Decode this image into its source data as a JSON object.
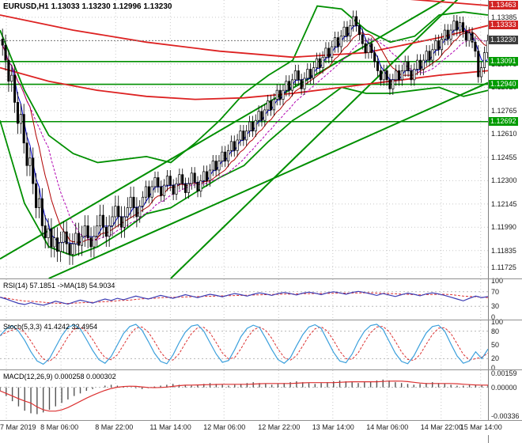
{
  "palette": {
    "grid": "#c8c8c8",
    "candle": "#000000",
    "green_line": "#008f00",
    "green_badge": "#009b00",
    "red_line": "#dd2222",
    "red_badge": "#d22424",
    "current_badge": "#3c3c3c",
    "blue_ma": "#0000cc",
    "crimson_ma": "#b00000",
    "magenta_ma": "#b000b0",
    "rsi_line": "#3c3cb4",
    "stoch_k": "#3ca0dc",
    "signal_red": "#dc3232",
    "hist": "#555555"
  },
  "chart_data": {
    "type": "candlestick",
    "main": {
      "symbol": "EURUSD",
      "timeframe": "H1",
      "ohlc_header": "EURUSD,H1  1.13033 1.13230 1.12996 1.13230",
      "open": 1.13033,
      "high": 1.1323,
      "low": 1.12996,
      "close": 1.1323,
      "price_max": 1.135,
      "price_min": 1.1165,
      "price_axis": {
        "ticks": [
          "1.13385",
          "1.13230",
          "1.13075",
          "1.12920",
          "1.12765",
          "1.12610",
          "1.12455",
          "1.12300",
          "1.12145",
          "1.11990",
          "1.11835",
          "1.11725"
        ],
        "badges": [
          {
            "text": "1.13463",
            "price": 1.13463,
            "bg": "#d22424"
          },
          {
            "text": "1.13333",
            "price": 1.13333,
            "bg": "#d22424"
          },
          {
            "text": "1.13230",
            "price": 1.1323,
            "bg": "#3c3c3c"
          },
          {
            "text": "1.13091",
            "price": 1.13091,
            "bg": "#009b00"
          },
          {
            "text": "1.12940",
            "price": 1.1294,
            "bg": "#009b00"
          },
          {
            "text": "1.12692",
            "price": 1.12692,
            "bg": "#009b00"
          }
        ]
      },
      "closes": [
        1.132,
        1.131,
        1.1296,
        1.13,
        1.1282,
        1.1268,
        1.1274,
        1.1255,
        1.124,
        1.1245,
        1.1228,
        1.1212,
        1.1218,
        1.12,
        1.1192,
        1.1198,
        1.1186,
        1.1192,
        1.1183,
        1.1189,
        1.1196,
        1.1188,
        1.1181,
        1.1188,
        1.1195,
        1.1187,
        1.1193,
        1.12,
        1.1192,
        1.1186,
        1.1193,
        1.12,
        1.1207,
        1.1199,
        1.1193,
        1.12,
        1.1206,
        1.1213,
        1.1206,
        1.1199,
        1.1206,
        1.1212,
        1.1219,
        1.1212,
        1.1206,
        1.1213,
        1.1219,
        1.1226,
        1.1219,
        1.1226,
        1.1232,
        1.1226,
        1.122,
        1.1227,
        1.1233,
        1.1227,
        1.1221,
        1.1228,
        1.1234,
        1.1228,
        1.1222,
        1.1228,
        1.1235,
        1.1229,
        1.1223,
        1.123,
        1.1236,
        1.123,
        1.1237,
        1.1243,
        1.1237,
        1.1243,
        1.1249,
        1.1243,
        1.125,
        1.1256,
        1.125,
        1.1257,
        1.1263,
        1.1257,
        1.1263,
        1.1269,
        1.1263,
        1.127,
        1.1276,
        1.127,
        1.1277,
        1.1283,
        1.1277,
        1.1284,
        1.129,
        1.1284,
        1.129,
        1.1296,
        1.129,
        1.1297,
        1.1303,
        1.1297,
        1.1291,
        1.1298,
        1.1304,
        1.1298,
        1.1305,
        1.1311,
        1.1305,
        1.1312,
        1.1318,
        1.1312,
        1.1319,
        1.1325,
        1.1319,
        1.1326,
        1.1332,
        1.1326,
        1.1333,
        1.1339,
        1.1333,
        1.1327,
        1.1321,
        1.1315,
        1.1321,
        1.1315,
        1.1309,
        1.1303,
        1.1297,
        1.1303,
        1.1297,
        1.1291,
        1.1297,
        1.1303,
        1.1297,
        1.1303,
        1.1309,
        1.1303,
        1.1297,
        1.1304,
        1.131,
        1.1304,
        1.131,
        1.1316,
        1.131,
        1.1317,
        1.1323,
        1.1317,
        1.1324,
        1.133,
        1.1324,
        1.133,
        1.1336,
        1.133,
        1.1335,
        1.1329,
        1.1323,
        1.1328,
        1.1322,
        1.1316,
        1.1299,
        1.1305,
        1.1315,
        1.1323
      ],
      "current_price": 1.1323,
      "h_lines": [
        1.13091,
        1.1294,
        1.12692
      ],
      "diagonals": [
        [
          [
            0.0,
            1.1178
          ],
          [
            0.92,
            1.1352
          ]
        ],
        [
          [
            0.1,
            1.1165
          ],
          [
            1.0,
            1.1295
          ]
        ],
        [
          [
            0.35,
            1.1165
          ],
          [
            1.0,
            1.137
          ]
        ]
      ],
      "upper_band": [
        [
          0,
          1.133
        ],
        [
          0.05,
          1.129
        ],
        [
          0.1,
          1.126
        ],
        [
          0.15,
          1.1248
        ],
        [
          0.2,
          1.1242
        ],
        [
          0.25,
          1.1244
        ],
        [
          0.3,
          1.1246
        ],
        [
          0.35,
          1.1242
        ],
        [
          0.4,
          1.1255
        ],
        [
          0.45,
          1.127
        ],
        [
          0.5,
          1.1288
        ],
        [
          0.55,
          1.13
        ],
        [
          0.6,
          1.131
        ],
        [
          0.65,
          1.1346
        ],
        [
          0.7,
          1.1344
        ],
        [
          0.75,
          1.133
        ],
        [
          0.8,
          1.1322
        ],
        [
          0.85,
          1.1326
        ],
        [
          0.9,
          1.134
        ],
        [
          0.95,
          1.1342
        ],
        [
          1,
          1.134
        ]
      ],
      "lower_band": [
        [
          0,
          1.127
        ],
        [
          0.05,
          1.1215
        ],
        [
          0.1,
          1.1186
        ],
        [
          0.15,
          1.118
        ],
        [
          0.2,
          1.1186
        ],
        [
          0.25,
          1.1196
        ],
        [
          0.3,
          1.1208
        ],
        [
          0.35,
          1.1212
        ],
        [
          0.4,
          1.1222
        ],
        [
          0.45,
          1.1232
        ],
        [
          0.5,
          1.124
        ],
        [
          0.55,
          1.1256
        ],
        [
          0.6,
          1.127
        ],
        [
          0.65,
          1.128
        ],
        [
          0.7,
          1.1292
        ],
        [
          0.75,
          1.1288
        ],
        [
          0.8,
          1.1288
        ],
        [
          0.85,
          1.129
        ],
        [
          0.9,
          1.1292
        ],
        [
          0.95,
          1.1286
        ],
        [
          1,
          1.129
        ]
      ],
      "red_lines": [
        [
          [
            0,
            1.134
          ],
          [
            0.15,
            1.133
          ],
          [
            0.3,
            1.1322
          ],
          [
            0.45,
            1.1316
          ],
          [
            0.6,
            1.1312
          ],
          [
            0.75,
            1.1315
          ],
          [
            0.9,
            1.1325
          ],
          [
            1,
            1.1333
          ]
        ],
        [
          [
            0.58,
            1.1368
          ],
          [
            0.7,
            1.1358
          ],
          [
            0.82,
            1.1351
          ],
          [
            1,
            1.13463
          ]
        ],
        [
          [
            0,
            1.1305
          ],
          [
            0.1,
            1.1296
          ],
          [
            0.2,
            1.129
          ],
          [
            0.3,
            1.1286
          ],
          [
            0.4,
            1.1284
          ],
          [
            0.5,
            1.1285
          ],
          [
            0.6,
            1.1288
          ],
          [
            0.7,
            1.1292
          ],
          [
            0.8,
            1.1296
          ],
          [
            0.9,
            1.13
          ],
          [
            1,
            1.1303
          ]
        ]
      ]
    },
    "time_axis": {
      "labels": [
        {
          "text": "7 Mar 2019",
          "x": 0.013
        },
        {
          "text": "8 Mar 06:00",
          "x": 0.125
        },
        {
          "text": "8 Mar 22:00",
          "x": 0.237
        },
        {
          "text": "11 Mar 14:00",
          "x": 0.349
        },
        {
          "text": "12 Mar 06:00",
          "x": 0.459
        },
        {
          "text": "12 Mar 22:00",
          "x": 0.571
        },
        {
          "text": "13 Mar 14:00",
          "x": 0.682
        },
        {
          "text": "14 Mar 06:00",
          "x": 0.793
        },
        {
          "text": "14 Mar 22:00",
          "x": 0.904
        },
        {
          "text": "15 Mar 14:00",
          "x": 0.985
        }
      ]
    },
    "rsi": {
      "label": "RSI(14) 57.1851 ->MA(18) 54.9034",
      "value": 57.1851,
      "ma_value": 54.9034,
      "axis_labels": [
        100,
        70,
        30,
        0
      ],
      "levels": [
        70,
        30
      ],
      "vmax": 100,
      "vmin": 0,
      "series": [
        55,
        50,
        44,
        38,
        35,
        40,
        36,
        33,
        38,
        44,
        40,
        36,
        42,
        47,
        43,
        39,
        45,
        50,
        46,
        52,
        48,
        53,
        58,
        54,
        50,
        55,
        60,
        56,
        52,
        57,
        62,
        58,
        54,
        59,
        63,
        60,
        56,
        61,
        65,
        62,
        58,
        63,
        67,
        64,
        60,
        65,
        68,
        65,
        61,
        66,
        69,
        66,
        62,
        67,
        70,
        67,
        63,
        68,
        71,
        68,
        64,
        60,
        65,
        61,
        57,
        62,
        66,
        63,
        59,
        64,
        67,
        64,
        60,
        55,
        50,
        45,
        52,
        58,
        54,
        57
      ]
    },
    "stoch": {
      "label": "Stoch(5,3,3) 41.4242 32.4954",
      "value": 41.4242,
      "signal_value": 32.4954,
      "axis_labels": [
        100,
        80,
        50,
        20,
        0
      ],
      "levels": [
        80,
        20
      ],
      "vmax": 100,
      "vmin": 0,
      "series": [
        70,
        85,
        92,
        80,
        60,
        35,
        15,
        8,
        20,
        45,
        70,
        88,
        94,
        85,
        62,
        38,
        18,
        10,
        25,
        50,
        75,
        90,
        95,
        82,
        58,
        32,
        14,
        9,
        28,
        55,
        78,
        91,
        94,
        80,
        55,
        30,
        12,
        16,
        40,
        68,
        86,
        93,
        88,
        65,
        40,
        18,
        10,
        22,
        48,
        72,
        89,
        94,
        86,
        60,
        34,
        15,
        11,
        30,
        58,
        80,
        92,
        95,
        84,
        58,
        32,
        14,
        9,
        26,
        52,
        76,
        90,
        93,
        80,
        52,
        26,
        10,
        15,
        35,
        20,
        41
      ]
    },
    "macd": {
      "label": "MACD(12,26,9) 0.000258 0.000302",
      "value": 0.000258,
      "signal_value": 0.000302,
      "axis_labels": [
        {
          "text": "0.00159",
          "v": 0.00159
        },
        {
          "text": "0.00000",
          "v": 0
        },
        {
          "text": "-0.00336",
          "v": -0.00336
        }
      ],
      "vmax": 0.0018,
      "vmin": -0.0036,
      "histogram": [
        -0.0004,
        -0.001,
        -0.0016,
        -0.0022,
        -0.0027,
        -0.003,
        -0.0031,
        -0.0029,
        -0.0026,
        -0.0022,
        -0.0018,
        -0.0014,
        -0.001,
        -0.0007,
        -0.0004,
        -0.0002,
        0.0,
        0.0002,
        0.0003,
        0.0002,
        0.0001,
        0.0,
        -0.0001,
        -0.0002,
        -0.0001,
        0.0001,
        0.0002,
        0.0003,
        0.0004,
        0.0003,
        0.0002,
        0.0002,
        0.0003,
        0.0004,
        0.0005,
        0.0004,
        0.0003,
        0.0002,
        0.0003,
        0.0004,
        0.0005,
        0.0006,
        0.0005,
        0.0004,
        0.0003,
        0.0004,
        0.0005,
        0.0006,
        0.0007,
        0.0006,
        0.0005,
        0.0004,
        0.0005,
        0.0006,
        0.0007,
        0.0008,
        0.0007,
        0.0006,
        0.0005,
        0.0006,
        0.0007,
        0.0008,
        0.0009,
        0.0008,
        0.0006,
        0.0005,
        0.0004,
        0.0003,
        0.0004,
        0.0005,
        0.0006,
        0.0005,
        0.0004,
        0.0003,
        0.0002,
        0.0002,
        0.0003,
        0.0003,
        0.00026,
        0.000258
      ]
    }
  }
}
